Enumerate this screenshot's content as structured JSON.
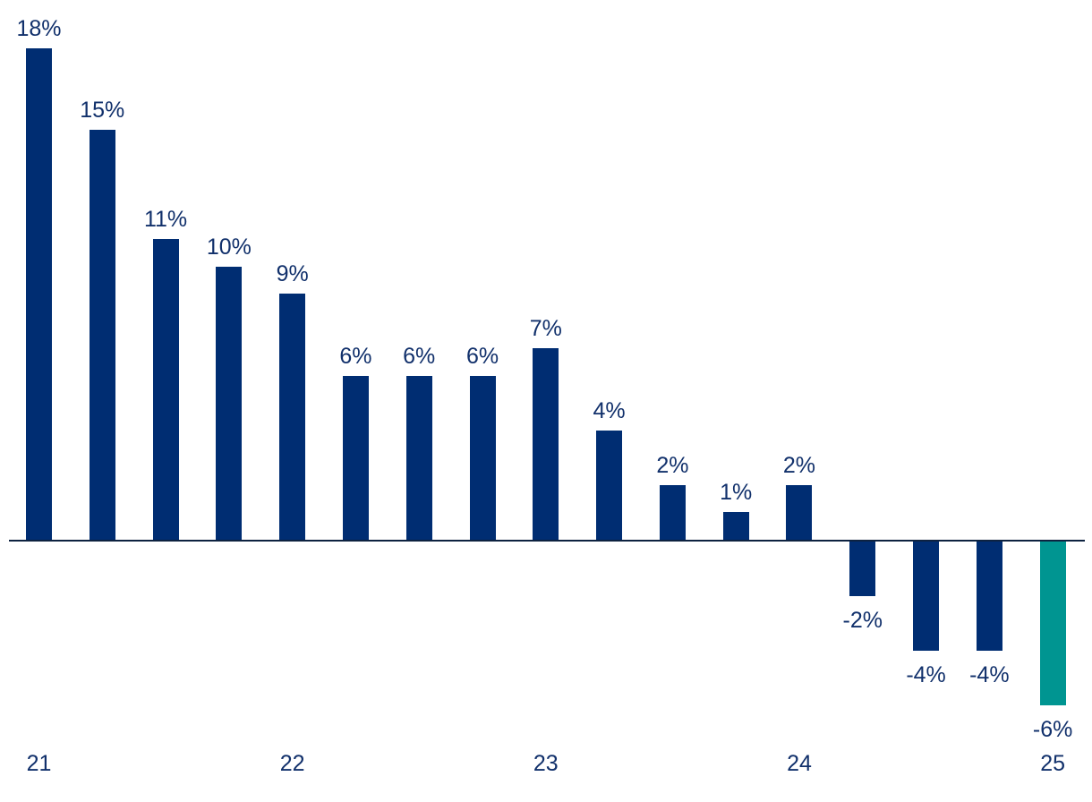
{
  "chart_data": {
    "type": "bar",
    "categories_note": "quarterly bars grouped by year; year tick shown under first bar of each year",
    "values": [
      18,
      15,
      11,
      10,
      9,
      6,
      6,
      6,
      7,
      4,
      2,
      1,
      2,
      -2,
      -4,
      -4,
      -6
    ],
    "value_labels": [
      "18%",
      "15%",
      "11%",
      "10%",
      "9%",
      "6%",
      "6%",
      "6%",
      "7%",
      "4%",
      "2%",
      "1%",
      "2%",
      "-2%",
      "-4%",
      "-4%",
      "-6%"
    ],
    "x_tick_labels": [
      {
        "label": "21",
        "bar_index": 0
      },
      {
        "label": "22",
        "bar_index": 4
      },
      {
        "label": "23",
        "bar_index": 8
      },
      {
        "label": "24",
        "bar_index": 12
      },
      {
        "label": "25",
        "bar_index": 16
      }
    ],
    "highlight_index": 16,
    "ylim": [
      -8,
      20
    ],
    "grid": false,
    "legend": false,
    "title": "",
    "xlabel": "",
    "ylabel": "",
    "colors": {
      "bar": "#002d72",
      "highlight": "#009591",
      "axis_line": "#0d2240",
      "label_text": "#11306b"
    }
  }
}
